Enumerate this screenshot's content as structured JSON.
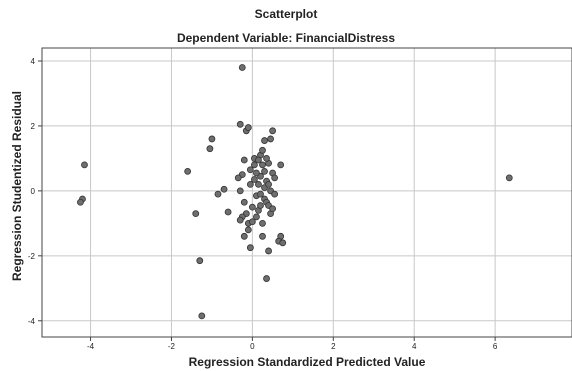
{
  "chart_data": {
    "type": "scatter",
    "title": "Scatterplot",
    "subtitle": "Dependent Variable: FinancialDistress",
    "xlabel": "Regression Standardized Predicted Value",
    "ylabel": "Regression Studentized Residual",
    "xlim": [
      -5.2,
      7.9
    ],
    "ylim": [
      -4.5,
      4.4
    ],
    "xticks": [
      -4,
      -2,
      0,
      2,
      4,
      6
    ],
    "yticks": [
      -4,
      -2,
      0,
      2,
      4
    ],
    "grid": true,
    "marker_color": "#6e6e6e",
    "marker_edge": "#333333",
    "points": [
      {
        "x": -4.15,
        "y": 0.8
      },
      {
        "x": -4.2,
        "y": -0.25
      },
      {
        "x": -4.25,
        "y": -0.35
      },
      {
        "x": -1.6,
        "y": 0.6
      },
      {
        "x": -1.4,
        "y": -0.7
      },
      {
        "x": -1.3,
        "y": -2.15
      },
      {
        "x": -1.25,
        "y": -3.85
      },
      {
        "x": -1.0,
        "y": 1.6
      },
      {
        "x": -1.05,
        "y": 1.3
      },
      {
        "x": -0.85,
        "y": -0.1
      },
      {
        "x": -0.7,
        "y": 0.05
      },
      {
        "x": -0.6,
        "y": -0.65
      },
      {
        "x": -0.25,
        "y": 3.8
      },
      {
        "x": -0.3,
        "y": 2.05
      },
      {
        "x": -0.15,
        "y": 1.85
      },
      {
        "x": -0.1,
        "y": 1.95
      },
      {
        "x": -0.3,
        "y": 0.0
      },
      {
        "x": -0.2,
        "y": -0.35
      },
      {
        "x": -0.25,
        "y": 0.5
      },
      {
        "x": -0.2,
        "y": 0.95
      },
      {
        "x": -0.35,
        "y": 0.4
      },
      {
        "x": -0.15,
        "y": -0.7
      },
      {
        "x": -0.25,
        "y": -0.8
      },
      {
        "x": -0.1,
        "y": -1.0
      },
      {
        "x": -0.3,
        "y": -0.9
      },
      {
        "x": -0.2,
        "y": -1.4
      },
      {
        "x": -0.1,
        "y": -1.2
      },
      {
        "x": -0.05,
        "y": -1.75
      },
      {
        "x": -0.05,
        "y": 0.2
      },
      {
        "x": 0.0,
        "y": -0.5
      },
      {
        "x": 0.05,
        "y": 0.8
      },
      {
        "x": 0.05,
        "y": 1.0
      },
      {
        "x": 0.1,
        "y": -0.15
      },
      {
        "x": 0.15,
        "y": 0.2
      },
      {
        "x": 0.15,
        "y": -0.6
      },
      {
        "x": 0.2,
        "y": 0.45
      },
      {
        "x": 0.2,
        "y": -0.1
      },
      {
        "x": 0.2,
        "y": 1.1
      },
      {
        "x": 0.25,
        "y": 1.25
      },
      {
        "x": 0.25,
        "y": -1.0
      },
      {
        "x": 0.25,
        "y": -1.4
      },
      {
        "x": 0.3,
        "y": 0.1
      },
      {
        "x": 0.3,
        "y": 0.6
      },
      {
        "x": 0.3,
        "y": -0.25
      },
      {
        "x": 0.3,
        "y": 1.55
      },
      {
        "x": 0.35,
        "y": -0.35
      },
      {
        "x": 0.35,
        "y": 0.3
      },
      {
        "x": 0.35,
        "y": -2.7
      },
      {
        "x": 0.4,
        "y": 0.85
      },
      {
        "x": 0.4,
        "y": -0.45
      },
      {
        "x": 0.4,
        "y": -1.85
      },
      {
        "x": 0.45,
        "y": 1.6
      },
      {
        "x": 0.45,
        "y": 0.0
      },
      {
        "x": 0.45,
        "y": -0.7
      },
      {
        "x": 0.5,
        "y": 1.85
      },
      {
        "x": 0.5,
        "y": 0.55
      },
      {
        "x": 0.5,
        "y": -0.55
      },
      {
        "x": 0.55,
        "y": 0.4
      },
      {
        "x": 0.55,
        "y": -0.1
      },
      {
        "x": 0.1,
        "y": 0.55
      },
      {
        "x": -0.05,
        "y": 0.65
      },
      {
        "x": 0.0,
        "y": -0.95
      },
      {
        "x": 0.1,
        "y": -0.8
      },
      {
        "x": 0.25,
        "y": 0.8
      },
      {
        "x": 0.15,
        "y": 0.95
      },
      {
        "x": 0.35,
        "y": 1.0
      },
      {
        "x": 0.4,
        "y": 0.2
      },
      {
        "x": 0.05,
        "y": 0.35
      },
      {
        "x": 0.2,
        "y": -0.45
      },
      {
        "x": 0.7,
        "y": 0.8
      },
      {
        "x": 0.7,
        "y": -1.4
      },
      {
        "x": 0.65,
        "y": -1.55
      },
      {
        "x": 0.75,
        "y": -1.6
      },
      {
        "x": 6.35,
        "y": 0.4
      }
    ]
  }
}
